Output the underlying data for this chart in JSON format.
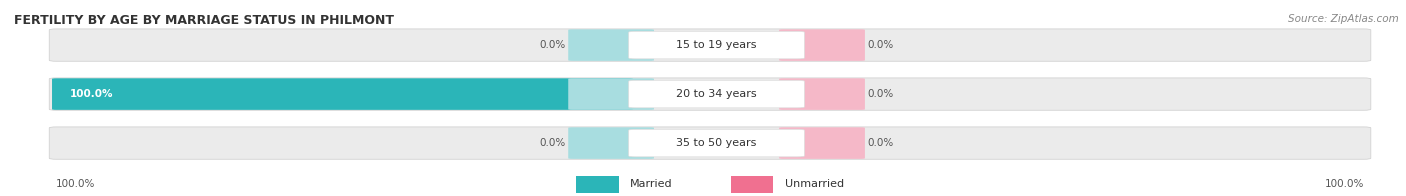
{
  "title": "FERTILITY BY AGE BY MARRIAGE STATUS IN PHILMONT",
  "source": "Source: ZipAtlas.com",
  "rows": [
    {
      "label": "15 to 19 years",
      "married": 0.0,
      "unmarried": 0.0
    },
    {
      "label": "20 to 34 years",
      "married": 100.0,
      "unmarried": 0.0
    },
    {
      "label": "35 to 50 years",
      "married": 0.0,
      "unmarried": 0.0
    }
  ],
  "married_color": "#2bb5b8",
  "married_bg_color": "#a8dde0",
  "unmarried_color": "#f07090",
  "unmarried_bg_color": "#f5b8c8",
  "bar_bg_color": "#e8e8e8",
  "figsize": [
    14.06,
    1.96
  ],
  "dpi": 100,
  "title_fontsize": 9,
  "label_fontsize": 8,
  "value_fontsize": 7.5,
  "tick_fontsize": 7.5,
  "legend_fontsize": 8,
  "bottom_left_label": "100.0%",
  "bottom_right_label": "100.0%",
  "bg_color": "#ffffff",
  "bar_bg_light": "#ebebeb"
}
